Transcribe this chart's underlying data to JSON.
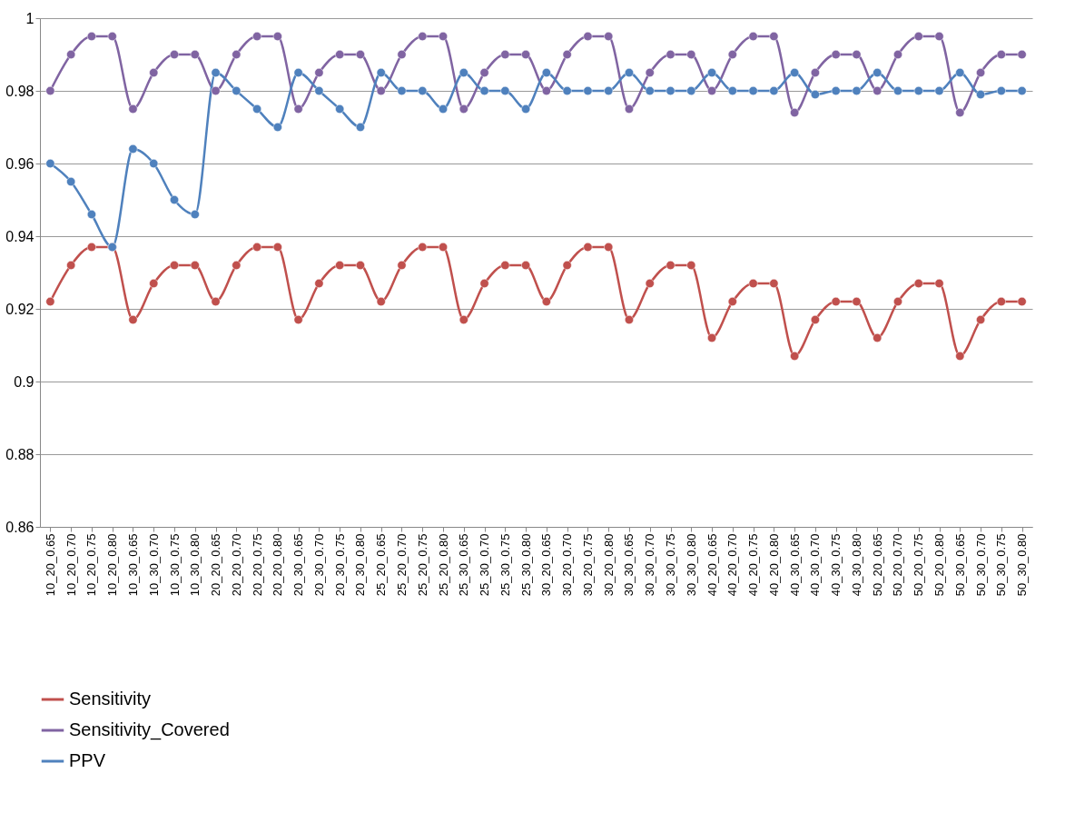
{
  "chart_data": {
    "type": "line",
    "categories": [
      "10_20_0.65",
      "10_20_0.70",
      "10_20_0.75",
      "10_20_0.80",
      "10_30_0.65",
      "10_30_0.70",
      "10_30_0.75",
      "10_30_0.80",
      "20_20_0.65",
      "20_20_0.70",
      "20_20_0.75",
      "20_20_0.80",
      "20_30_0.65",
      "20_30_0.70",
      "20_30_0.75",
      "20_30_0.80",
      "25_20_0.65",
      "25_20_0.70",
      "25_20_0.75",
      "25_20_0.80",
      "25_30_0.65",
      "25_30_0.70",
      "25_30_0.75",
      "25_30_0.80",
      "30_20_0.65",
      "30_20_0.70",
      "30_20_0.75",
      "30_20_0.80",
      "30_30_0.65",
      "30_30_0.70",
      "30_30_0.75",
      "30_30_0.80",
      "40_20_0.65",
      "40_20_0.70",
      "40_20_0.75",
      "40_20_0.80",
      "40_30_0.65",
      "40_30_0.70",
      "40_30_0.75",
      "40_30_0.80",
      "50_20_0.65",
      "50_20_0.70",
      "50_20_0.75",
      "50_20_0.80",
      "50_30_0.65",
      "50_30_0.70",
      "50_30_0.75",
      "50_30_0.80"
    ],
    "series": [
      {
        "name": "Sensitivity",
        "color": "#c0504d",
        "values": [
          0.922,
          0.932,
          0.937,
          0.937,
          0.917,
          0.927,
          0.932,
          0.932,
          0.922,
          0.932,
          0.937,
          0.937,
          0.917,
          0.927,
          0.932,
          0.932,
          0.922,
          0.932,
          0.937,
          0.937,
          0.917,
          0.927,
          0.932,
          0.932,
          0.922,
          0.932,
          0.937,
          0.937,
          0.917,
          0.927,
          0.932,
          0.932,
          0.912,
          0.922,
          0.927,
          0.927,
          0.907,
          0.917,
          0.922,
          0.922,
          0.912,
          0.922,
          0.927,
          0.927,
          0.907,
          0.917,
          0.922,
          0.922
        ]
      },
      {
        "name": "Sensitivity_Covered",
        "color": "#8064a2",
        "values": [
          0.98,
          0.99,
          0.995,
          0.995,
          0.975,
          0.985,
          0.99,
          0.99,
          0.98,
          0.99,
          0.995,
          0.995,
          0.975,
          0.985,
          0.99,
          0.99,
          0.98,
          0.99,
          0.995,
          0.995,
          0.975,
          0.985,
          0.99,
          0.99,
          0.98,
          0.99,
          0.995,
          0.995,
          0.975,
          0.985,
          0.99,
          0.99,
          0.98,
          0.99,
          0.995,
          0.995,
          0.974,
          0.985,
          0.99,
          0.99,
          0.98,
          0.99,
          0.995,
          0.995,
          0.974,
          0.985,
          0.99,
          0.99
        ]
      },
      {
        "name": "PPV",
        "color": "#4f81bd",
        "values": [
          0.96,
          0.955,
          0.946,
          0.937,
          0.964,
          0.96,
          0.95,
          0.946,
          0.985,
          0.98,
          0.975,
          0.97,
          0.985,
          0.98,
          0.975,
          0.97,
          0.985,
          0.98,
          0.98,
          0.975,
          0.985,
          0.98,
          0.98,
          0.975,
          0.985,
          0.98,
          0.98,
          0.98,
          0.985,
          0.98,
          0.98,
          0.98,
          0.985,
          0.98,
          0.98,
          0.98,
          0.985,
          0.979,
          0.98,
          0.98,
          0.985,
          0.98,
          0.98,
          0.98,
          0.985,
          0.979,
          0.98,
          0.98
        ]
      }
    ],
    "ylim": [
      0.86,
      1
    ],
    "yticks": [
      0.86,
      0.88,
      0.9,
      0.92,
      0.94,
      0.96,
      0.98,
      1
    ],
    "grid": "y",
    "legend": "bottom",
    "marker": "circle",
    "line_style": "solid"
  }
}
